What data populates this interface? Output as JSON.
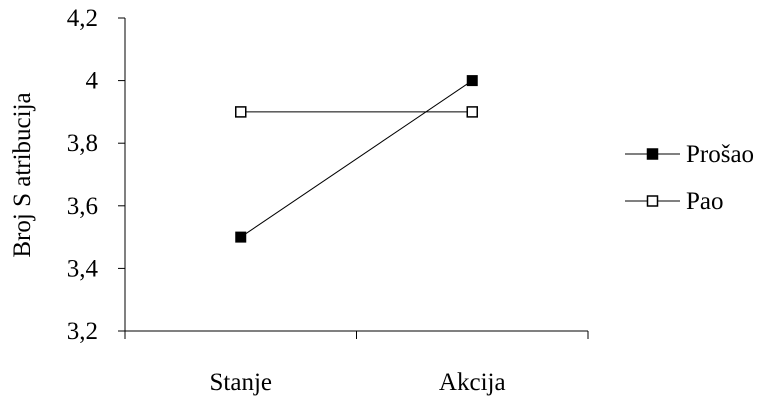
{
  "chart_data": {
    "type": "line",
    "categories": [
      "Stanje",
      "Akcija"
    ],
    "series": [
      {
        "name": "Prošao",
        "values": [
          3.5,
          4.0
        ],
        "marker": "filled-square",
        "color": "#000000"
      },
      {
        "name": "Pao",
        "values": [
          3.9,
          3.9
        ],
        "marker": "open-square",
        "color": "#000000"
      }
    ],
    "title": "",
    "xlabel": "",
    "ylabel": "Broj S atribucija",
    "ylim": [
      3.2,
      4.2
    ],
    "yticks": [
      "3,2",
      "3,4",
      "3,6",
      "3,8",
      "4",
      "4,2"
    ],
    "grid": false,
    "legend_position": "right"
  }
}
